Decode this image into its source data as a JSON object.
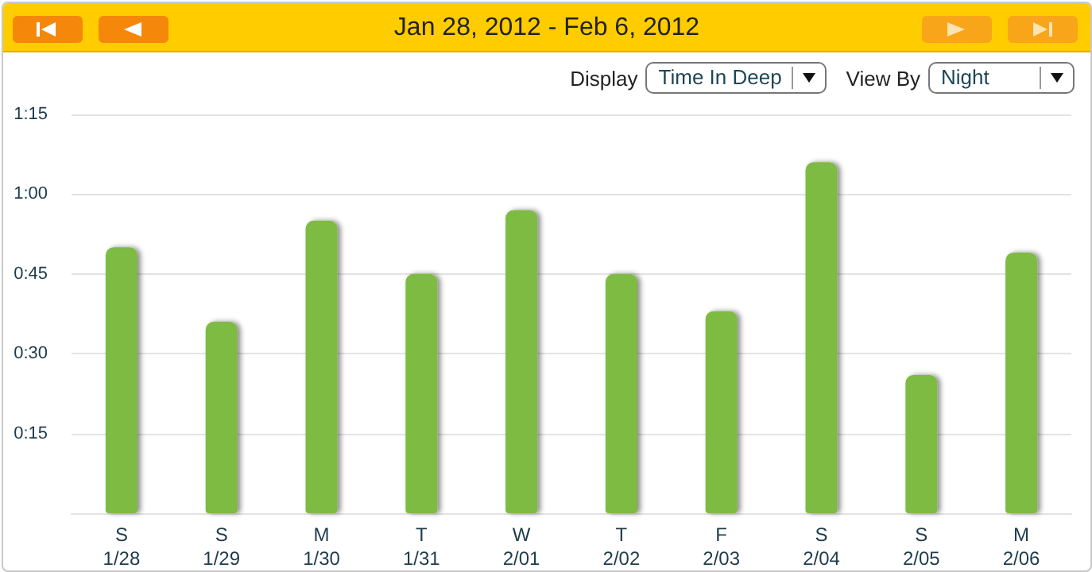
{
  "chart_data": {
    "type": "bar",
    "title": "Jan 28, 2012 - Feb 6, 2012",
    "annotations": [
      "Display",
      "Time In Deep",
      "View By",
      "Night"
    ],
    "categories": [
      "S\n1/28",
      "S\n1/29",
      "M\n1/30",
      "T\n1/31",
      "W\n2/01",
      "T\n2/02",
      "F\n2/03",
      "S\n2/04",
      "S\n2/05",
      "M\n2/06"
    ],
    "values": [
      50,
      36,
      55,
      45,
      57,
      45,
      38,
      66,
      26,
      49
    ],
    "color": "#7dbb42",
    "ylim": [
      0,
      75
    ],
    "yticks": [
      {
        "value": 15,
        "label": "0:15"
      },
      {
        "value": 30,
        "label": "0:30"
      },
      {
        "value": 45,
        "label": "0:45"
      },
      {
        "value": 60,
        "label": "1:00"
      },
      {
        "value": 75,
        "label": "1:15"
      }
    ],
    "grid": "y"
  }
}
